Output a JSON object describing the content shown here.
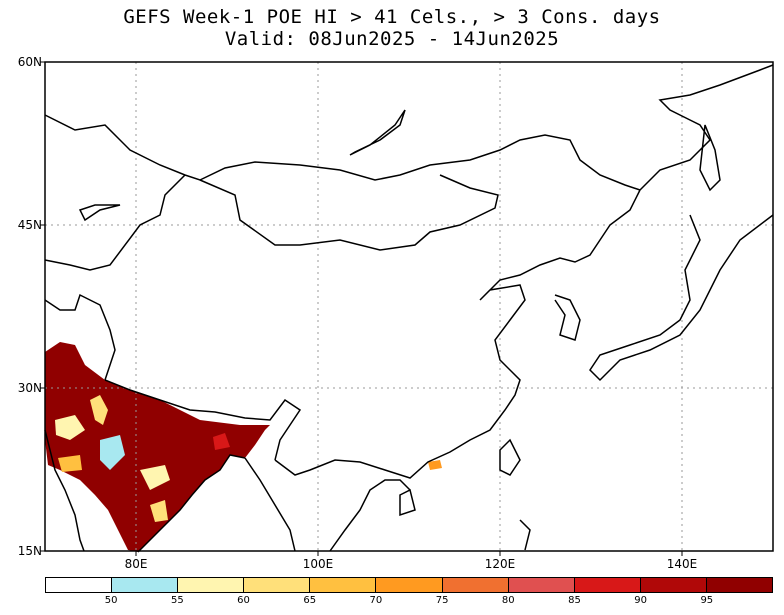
{
  "title": {
    "line1": "GEFS Week-1 POE HI > 41 Cels., > 3 Cons. days",
    "line2": "Valid: 08Jun2025 - 14Jun2025"
  },
  "axes": {
    "lat_labels": [
      "60N",
      "45N",
      "30N",
      "15N"
    ],
    "lon_labels": [
      "80E",
      "100E",
      "120E",
      "140E"
    ]
  },
  "colorbar": {
    "levels": [
      "50",
      "55",
      "60",
      "65",
      "70",
      "75",
      "80",
      "85",
      "90",
      "95"
    ],
    "colors": [
      "#ffffff",
      "#a8e8f0",
      "#fff5b0",
      "#ffe07a",
      "#ffc040",
      "#ff9a20",
      "#f07030",
      "#e05050",
      "#d81818",
      "#b00808",
      "#900000"
    ]
  }
}
